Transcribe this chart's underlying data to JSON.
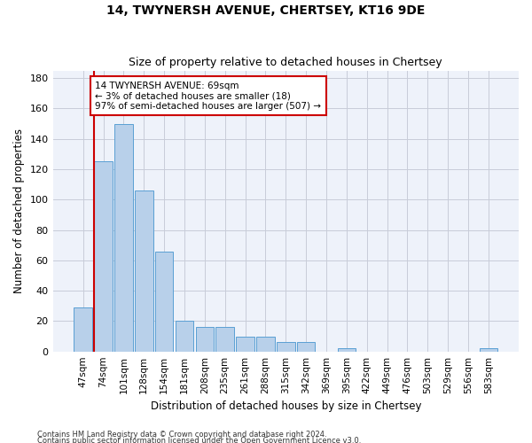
{
  "title": "14, TWYNERSH AVENUE, CHERTSEY, KT16 9DE",
  "subtitle": "Size of property relative to detached houses in Chertsey",
  "xlabel": "Distribution of detached houses by size in Chertsey",
  "ylabel": "Number of detached properties",
  "bar_values": [
    29,
    125,
    150,
    106,
    66,
    20,
    16,
    16,
    10,
    10,
    6,
    6,
    0,
    2,
    0,
    0,
    0,
    0,
    0,
    0,
    2
  ],
  "bar_labels": [
    "47sqm",
    "74sqm",
    "101sqm",
    "128sqm",
    "154sqm",
    "181sqm",
    "208sqm",
    "235sqm",
    "261sqm",
    "288sqm",
    "315sqm",
    "342sqm",
    "369sqm",
    "395sqm",
    "422sqm",
    "449sqm",
    "476sqm",
    "503sqm",
    "529sqm",
    "556sqm",
    "583sqm"
  ],
  "bar_color": "#b8d0ea",
  "bar_edge_color": "#5a9fd4",
  "background_color": "#eef2fa",
  "grid_color": "#c8ccd8",
  "annotation_box_text": "14 TWYNERSH AVENUE: 69sqm\n← 3% of detached houses are smaller (18)\n97% of semi-detached houses are larger (507) →",
  "marker_line_color": "#cc0000",
  "ylim": [
    0,
    185
  ],
  "yticks": [
    0,
    20,
    40,
    60,
    80,
    100,
    120,
    140,
    160,
    180
  ],
  "footer_line1": "Contains HM Land Registry data © Crown copyright and database right 2024.",
  "footer_line2": "Contains public sector information licensed under the Open Government Licence v3.0."
}
